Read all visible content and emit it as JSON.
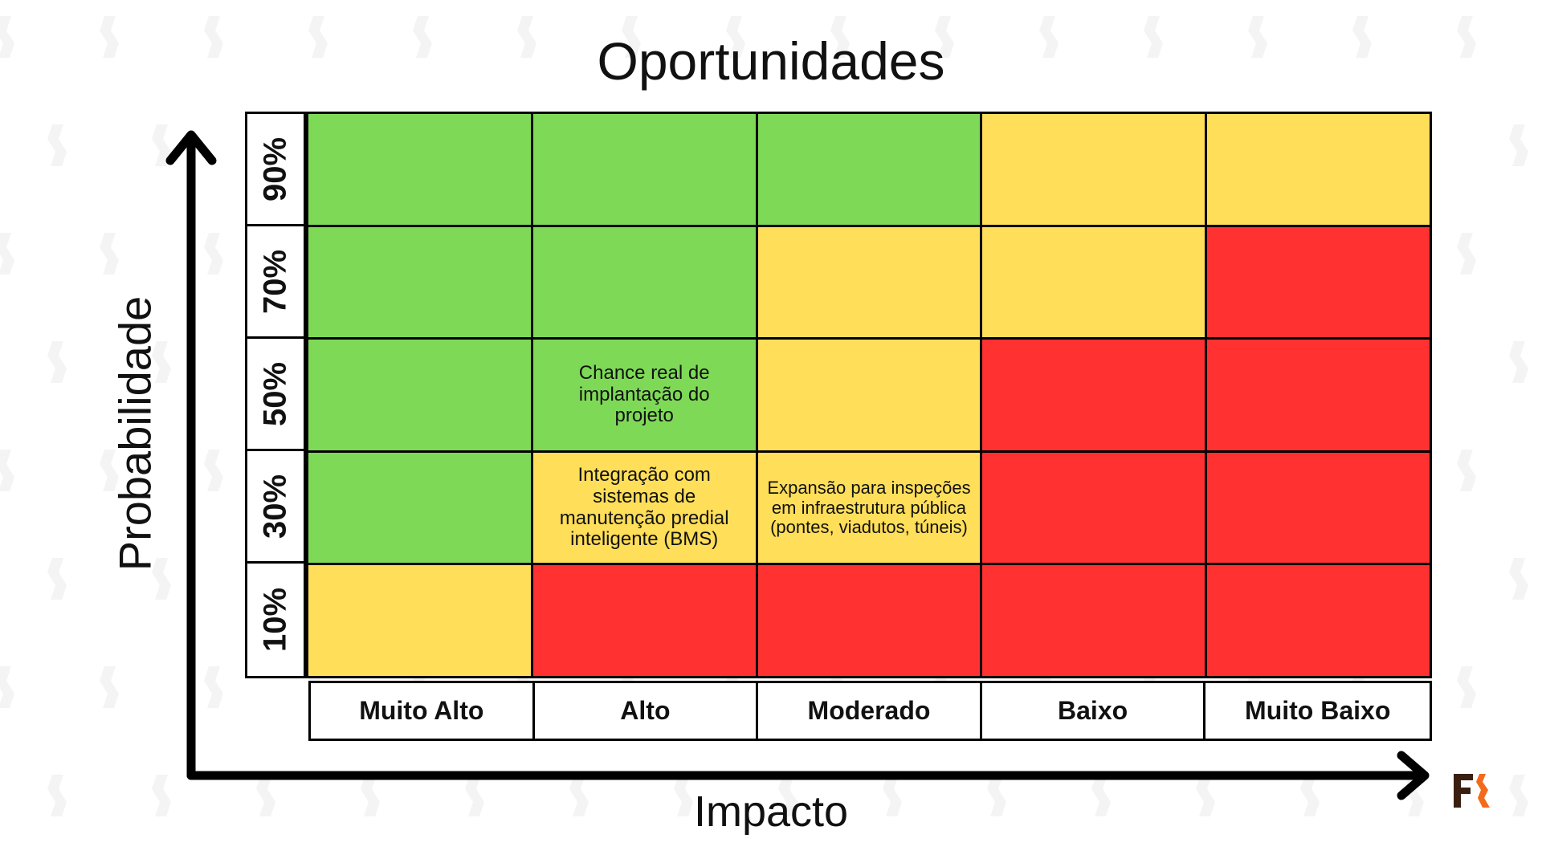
{
  "title": "Oportunidades",
  "y_axis_label": "Probabilidade",
  "x_axis_label": "Impacto",
  "probability_levels": [
    "90%",
    "70%",
    "50%",
    "30%",
    "10%"
  ],
  "impact_levels": [
    "Muito Alto",
    "Alto",
    "Moderado",
    "Baixo",
    "Muito Baixo"
  ],
  "colors": {
    "green": "#7ED957",
    "yellow": "#FFDE59",
    "red": "#FF3131",
    "axis": "#000000",
    "logo_dark": "#3a1f10",
    "logo_accent": "#f26a1b"
  },
  "rows": [
    {
      "probability": "90%",
      "cells": [
        {
          "color": "green",
          "text": ""
        },
        {
          "color": "green",
          "text": ""
        },
        {
          "color": "green",
          "text": ""
        },
        {
          "color": "yellow",
          "text": ""
        },
        {
          "color": "yellow",
          "text": ""
        }
      ]
    },
    {
      "probability": "70%",
      "cells": [
        {
          "color": "green",
          "text": ""
        },
        {
          "color": "green",
          "text": ""
        },
        {
          "color": "yellow",
          "text": ""
        },
        {
          "color": "yellow",
          "text": ""
        },
        {
          "color": "red",
          "text": ""
        }
      ]
    },
    {
      "probability": "50%",
      "cells": [
        {
          "color": "green",
          "text": ""
        },
        {
          "color": "green",
          "text": "Chance real de implantação do projeto"
        },
        {
          "color": "yellow",
          "text": ""
        },
        {
          "color": "red",
          "text": ""
        },
        {
          "color": "red",
          "text": ""
        }
      ]
    },
    {
      "probability": "30%",
      "cells": [
        {
          "color": "green",
          "text": ""
        },
        {
          "color": "yellow",
          "text": "Integração com sistemas de manutenção predial inteligente (BMS)"
        },
        {
          "color": "yellow",
          "text": "Expansão para inspeções em infraestrutura pública (pontes, viadutos, túneis)"
        },
        {
          "color": "red",
          "text": ""
        },
        {
          "color": "red",
          "text": ""
        }
      ]
    },
    {
      "probability": "10%",
      "cells": [
        {
          "color": "yellow",
          "text": ""
        },
        {
          "color": "red",
          "text": ""
        },
        {
          "color": "red",
          "text": ""
        },
        {
          "color": "red",
          "text": ""
        },
        {
          "color": "red",
          "text": ""
        }
      ]
    }
  ],
  "logo": {
    "icon": "fr-logo-icon"
  }
}
